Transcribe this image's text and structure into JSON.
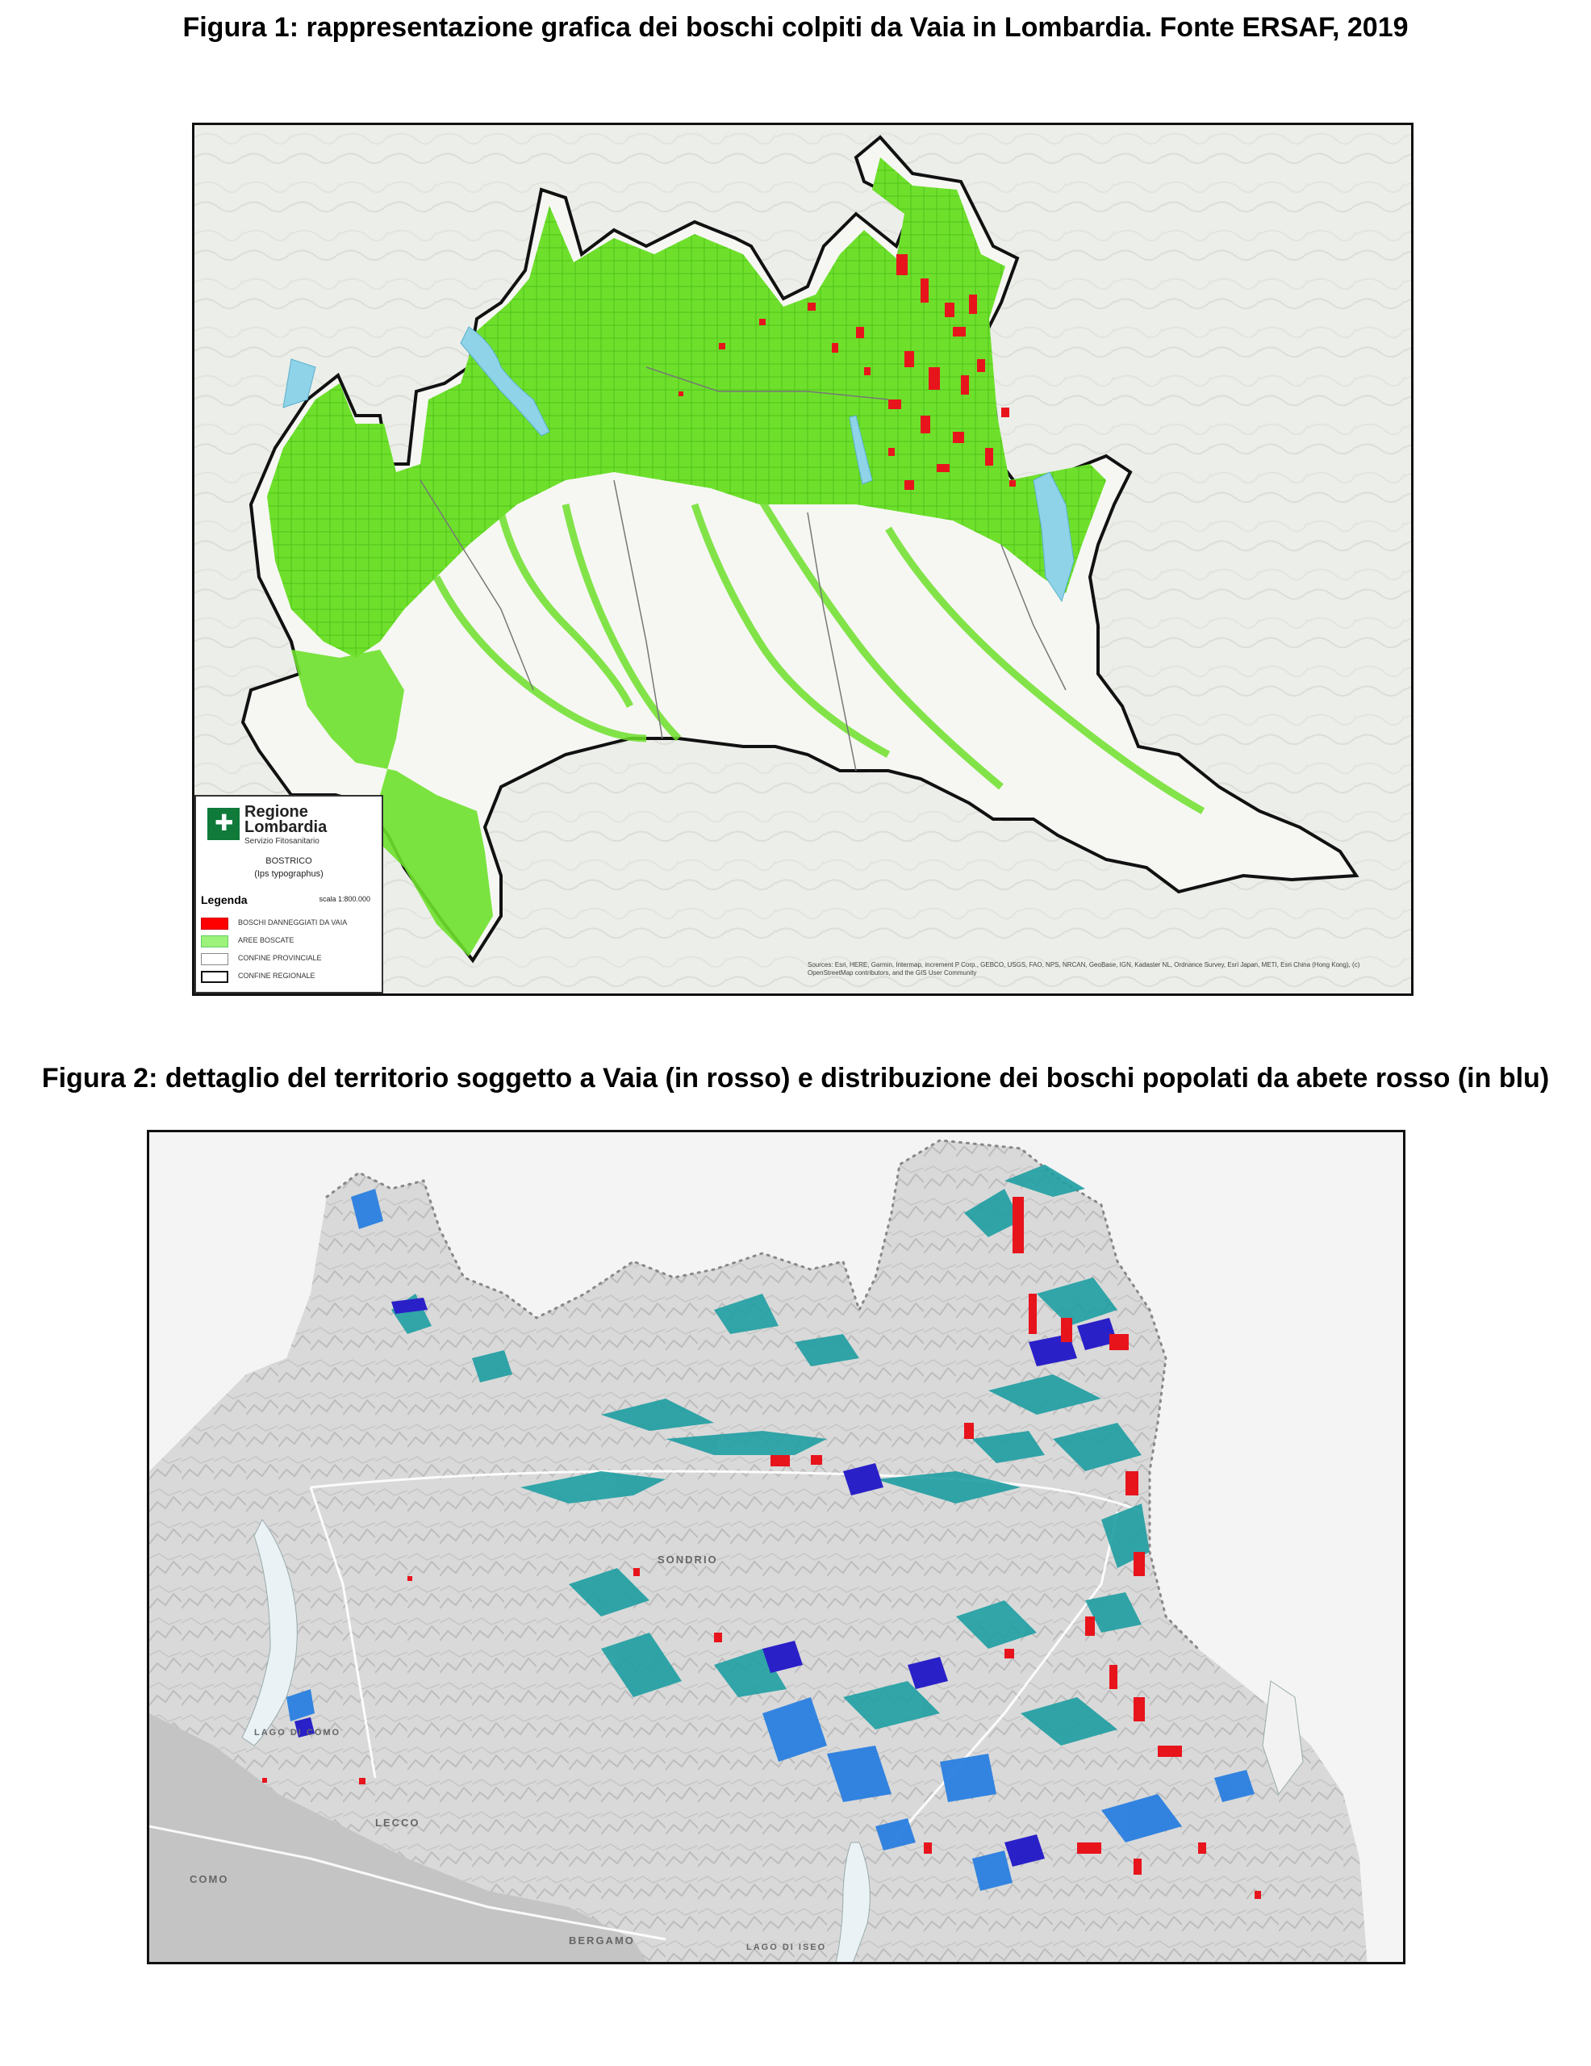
{
  "figure1": {
    "caption": "Figura 1: rappresentazione grafica dei boschi colpiti da Vaia in Lombardia. Fonte ERSAF, 2019",
    "legend": {
      "logo_line1": "Regione",
      "logo_line2": "Lombardia",
      "logo_sub": "Servizio Fitosanitario",
      "subject": "BOSTRICO",
      "subject_latin": "(Ips typographus)",
      "title": "Legenda",
      "scale": "scala 1:800.000",
      "items": [
        {
          "label": "BOSCHI DANNEGGIATI DA VAIA",
          "color": "#ff0000"
        },
        {
          "label": "AREE BOSCATE",
          "color": "#9cf27a"
        },
        {
          "label": "CONFINE PROVINCIALE",
          "color": "#ffffff"
        },
        {
          "label": "CONFINE REGIONALE",
          "color": "#ffffff"
        }
      ]
    },
    "credits": "Sources: Esri, HERE, Garmin, Intermap, increment P Corp., GEBCO, USGS, FAO, NPS, NRCAN, GeoBase, IGN, Kadaster NL, Ordnance Survey, Esri Japan, METI, Esri China (Hong Kong), (c) OpenStreetMap contributors, and the GIS User Community",
    "colors": {
      "forest": "#6ee02c",
      "damage": "#e8141c",
      "lake": "#8fd3e8",
      "border": "#111111"
    }
  },
  "figure2": {
    "caption": "Figura 2: dettaglio del territorio soggetto a Vaia (in rosso) e distribuzione dei boschi popolati da abete rosso (in blu)",
    "places": [
      "SONDRIO",
      "LAGO DI COMO",
      "LECCO",
      "COMO",
      "BERGAMO",
      "LAGO DI ISEO"
    ],
    "colors": {
      "spruce_teal": "#1e9ea2",
      "spruce_blue": "#2a7fe0",
      "spruce_dark": "#2a20c8",
      "damage": "#e8141c"
    }
  }
}
